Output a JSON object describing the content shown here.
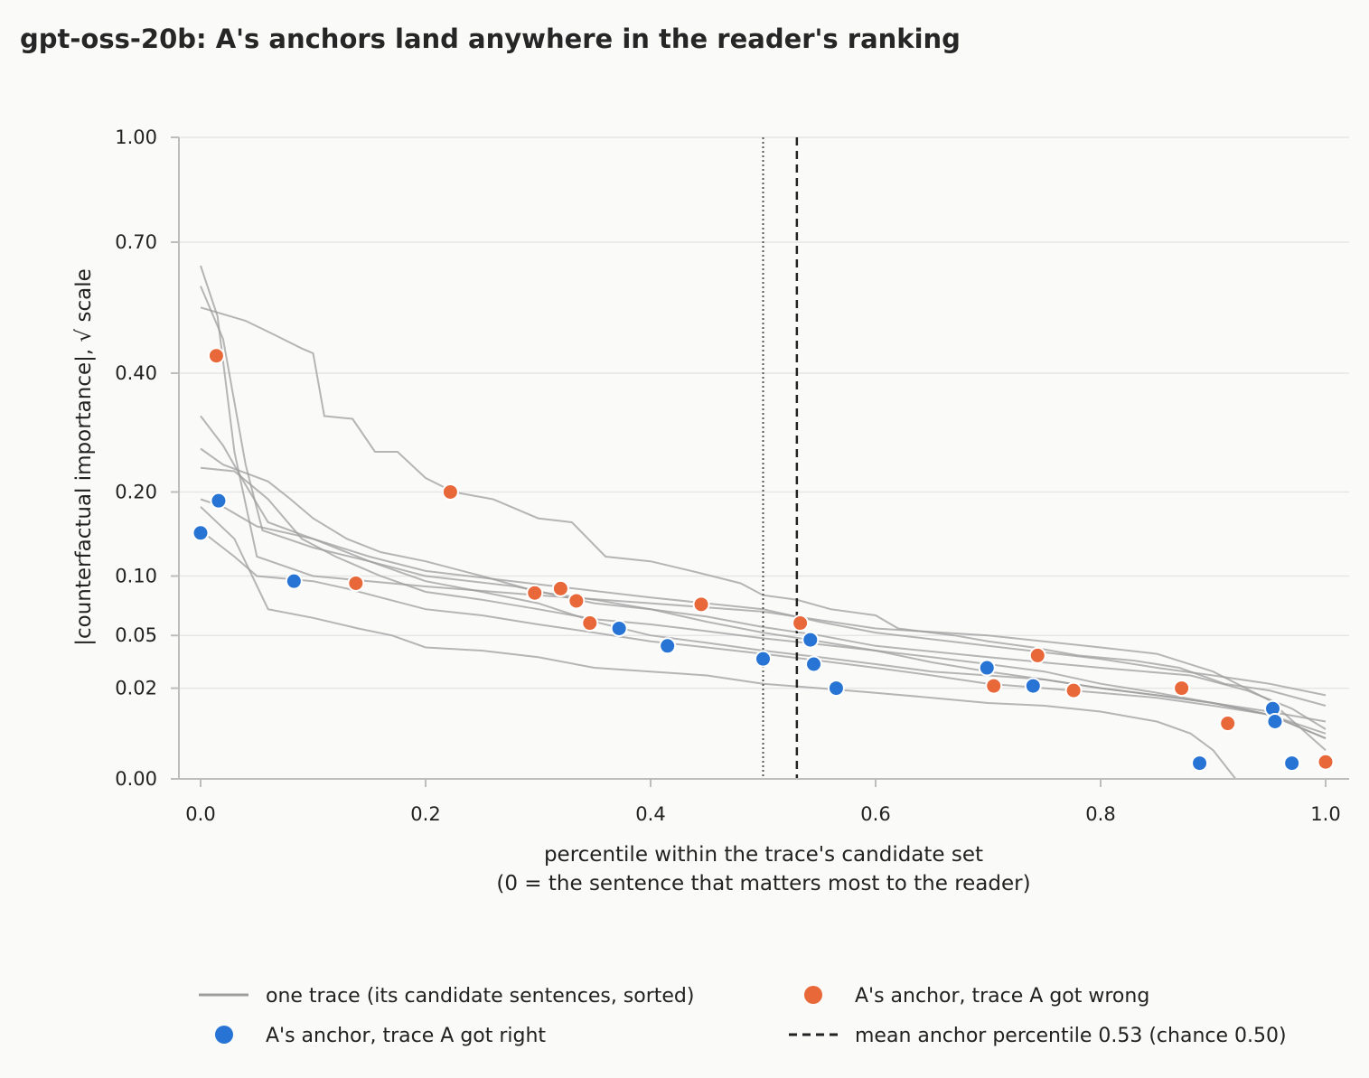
{
  "chart_data": {
    "type": "line",
    "title": "gpt-oss-20b: A's anchors land anywhere in the reader's ranking",
    "xlabel": "percentile within the trace's candidate set",
    "xlabel2": "(0 = the sentence that matters most to the reader)",
    "ylabel": "|counterfactual importance|, √ scale",
    "y_scale": "sqrt",
    "xlim": [
      0.0,
      1.0
    ],
    "ylim": [
      0.0,
      1.0
    ],
    "x_ticks": [
      "0.0",
      "0.2",
      "0.4",
      "0.6",
      "0.8",
      "1.0"
    ],
    "x_tick_values": [
      0.0,
      0.2,
      0.4,
      0.6,
      0.8,
      1.0
    ],
    "y_ticks": [
      "0.00",
      "0.02",
      "0.05",
      "0.10",
      "0.20",
      "0.40",
      "0.70",
      "1.00"
    ],
    "y_tick_values": [
      0.0,
      0.02,
      0.05,
      0.1,
      0.2,
      0.4,
      0.7,
      1.0
    ],
    "grid": "horizontal",
    "legend_position": "bottom",
    "colors": {
      "trace": "#9e9e9e",
      "wrong": "#e8683a",
      "right": "#2874d4",
      "mean": "#222222",
      "chance": "#555555"
    },
    "mean_anchor_percentile": 0.53,
    "chance_percentile": 0.5,
    "legend": {
      "trace": "one trace (its candidate sentences, sorted)",
      "wrong": "A's anchor, trace A got wrong",
      "right": "A's anchor, trace A got right",
      "mean": "mean anchor percentile 0.53 (chance 0.50)"
    },
    "traces": [
      [
        [
          0.0,
          0.54
        ],
        [
          0.04,
          0.51
        ],
        [
          0.065,
          0.48
        ],
        [
          0.09,
          0.45
        ],
        [
          0.1,
          0.44
        ],
        [
          0.11,
          0.32
        ],
        [
          0.135,
          0.315
        ],
        [
          0.155,
          0.26
        ],
        [
          0.175,
          0.26
        ],
        [
          0.2,
          0.22
        ],
        [
          0.225,
          0.2
        ],
        [
          0.26,
          0.19
        ],
        [
          0.3,
          0.165
        ],
        [
          0.33,
          0.16
        ],
        [
          0.36,
          0.12
        ],
        [
          0.4,
          0.115
        ],
        [
          0.44,
          0.104
        ],
        [
          0.48,
          0.093
        ],
        [
          0.5,
          0.082
        ],
        [
          0.53,
          0.078
        ],
        [
          0.56,
          0.07
        ],
        [
          0.6,
          0.065
        ],
        [
          0.62,
          0.055
        ],
        [
          0.67,
          0.05
        ],
        [
          0.7,
          0.046
        ],
        [
          0.74,
          0.042
        ],
        [
          0.78,
          0.037
        ],
        [
          0.83,
          0.034
        ],
        [
          0.87,
          0.03
        ],
        [
          0.91,
          0.022
        ],
        [
          0.95,
          0.019
        ],
        [
          1.0,
          0.013
        ]
      ],
      [
        [
          0.0,
          0.64
        ],
        [
          0.015,
          0.52
        ],
        [
          0.03,
          0.26
        ],
        [
          0.05,
          0.12
        ],
        [
          0.1,
          0.1
        ],
        [
          0.2,
          0.09
        ],
        [
          0.3,
          0.082
        ],
        [
          0.4,
          0.075
        ],
        [
          0.5,
          0.068
        ],
        [
          0.6,
          0.055
        ],
        [
          0.7,
          0.05
        ],
        [
          0.8,
          0.042
        ],
        [
          0.85,
          0.038
        ],
        [
          0.9,
          0.028
        ],
        [
          0.95,
          0.015
        ],
        [
          1.0,
          0.002
        ]
      ],
      [
        [
          0.0,
          0.59
        ],
        [
          0.02,
          0.47
        ],
        [
          0.04,
          0.24
        ],
        [
          0.055,
          0.15
        ],
        [
          0.1,
          0.13
        ],
        [
          0.15,
          0.115
        ],
        [
          0.2,
          0.1
        ],
        [
          0.28,
          0.09
        ],
        [
          0.35,
          0.075
        ],
        [
          0.4,
          0.07
        ],
        [
          0.45,
          0.064
        ],
        [
          0.5,
          0.056
        ],
        [
          0.55,
          0.05
        ],
        [
          0.6,
          0.043
        ],
        [
          0.7,
          0.036
        ],
        [
          0.8,
          0.03
        ],
        [
          0.88,
          0.026
        ],
        [
          0.93,
          0.019
        ],
        [
          0.97,
          0.012
        ],
        [
          1.0,
          0.006
        ]
      ],
      [
        [
          0.0,
          0.32
        ],
        [
          0.02,
          0.27
        ],
        [
          0.04,
          0.21
        ],
        [
          0.06,
          0.16
        ],
        [
          0.1,
          0.14
        ],
        [
          0.15,
          0.12
        ],
        [
          0.2,
          0.105
        ],
        [
          0.3,
          0.092
        ],
        [
          0.4,
          0.08
        ],
        [
          0.5,
          0.07
        ],
        [
          0.55,
          0.06
        ],
        [
          0.6,
          0.052
        ],
        [
          0.7,
          0.043
        ],
        [
          0.8,
          0.035
        ],
        [
          0.85,
          0.03
        ],
        [
          0.9,
          0.026
        ],
        [
          0.95,
          0.022
        ],
        [
          1.0,
          0.017
        ]
      ],
      [
        [
          0.0,
          0.265
        ],
        [
          0.02,
          0.24
        ],
        [
          0.06,
          0.215
        ],
        [
          0.08,
          0.19
        ],
        [
          0.1,
          0.165
        ],
        [
          0.13,
          0.14
        ],
        [
          0.16,
          0.125
        ],
        [
          0.2,
          0.115
        ],
        [
          0.25,
          0.1
        ],
        [
          0.3,
          0.085
        ],
        [
          0.35,
          0.078
        ],
        [
          0.4,
          0.07
        ],
        [
          0.45,
          0.06
        ],
        [
          0.5,
          0.052
        ],
        [
          0.55,
          0.046
        ],
        [
          0.6,
          0.04
        ],
        [
          0.65,
          0.033
        ],
        [
          0.7,
          0.028
        ],
        [
          0.75,
          0.024
        ],
        [
          0.8,
          0.02
        ],
        [
          0.85,
          0.017
        ],
        [
          0.9,
          0.014
        ],
        [
          0.95,
          0.011
        ],
        [
          1.0,
          0.008
        ]
      ],
      [
        [
          0.0,
          0.235
        ],
        [
          0.03,
          0.23
        ],
        [
          0.06,
          0.19
        ],
        [
          0.09,
          0.14
        ],
        [
          0.12,
          0.12
        ],
        [
          0.16,
          0.1
        ],
        [
          0.2,
          0.085
        ],
        [
          0.25,
          0.078
        ],
        [
          0.3,
          0.07
        ],
        [
          0.35,
          0.062
        ],
        [
          0.4,
          0.058
        ],
        [
          0.45,
          0.053
        ],
        [
          0.5,
          0.048
        ],
        [
          0.55,
          0.044
        ],
        [
          0.6,
          0.04
        ],
        [
          0.65,
          0.036
        ],
        [
          0.7,
          0.032
        ],
        [
          0.75,
          0.028
        ],
        [
          0.8,
          0.022
        ],
        [
          0.85,
          0.018
        ],
        [
          0.9,
          0.014
        ],
        [
          0.95,
          0.01
        ],
        [
          1.0,
          0.005
        ]
      ],
      [
        [
          0.0,
          0.19
        ],
        [
          0.02,
          0.18
        ],
        [
          0.05,
          0.155
        ],
        [
          0.1,
          0.14
        ],
        [
          0.15,
          0.115
        ],
        [
          0.2,
          0.095
        ],
        [
          0.25,
          0.085
        ],
        [
          0.3,
          0.075
        ],
        [
          0.35,
          0.06
        ],
        [
          0.4,
          0.05
        ],
        [
          0.45,
          0.045
        ],
        [
          0.5,
          0.04
        ],
        [
          0.55,
          0.036
        ],
        [
          0.6,
          0.032
        ],
        [
          0.65,
          0.028
        ],
        [
          0.7,
          0.026
        ],
        [
          0.75,
          0.024
        ],
        [
          0.8,
          0.02
        ],
        [
          0.85,
          0.017
        ],
        [
          0.9,
          0.014
        ],
        [
          0.95,
          0.01
        ],
        [
          1.0,
          0.004
        ]
      ],
      [
        [
          0.0,
          0.15
        ],
        [
          0.03,
          0.12
        ],
        [
          0.05,
          0.1
        ],
        [
          0.1,
          0.095
        ],
        [
          0.13,
          0.088
        ],
        [
          0.16,
          0.08
        ],
        [
          0.2,
          0.07
        ],
        [
          0.25,
          0.065
        ],
        [
          0.3,
          0.058
        ],
        [
          0.35,
          0.052
        ],
        [
          0.4,
          0.046
        ],
        [
          0.45,
          0.042
        ],
        [
          0.5,
          0.038
        ],
        [
          0.55,
          0.034
        ],
        [
          0.6,
          0.03
        ],
        [
          0.65,
          0.026
        ],
        [
          0.7,
          0.022
        ],
        [
          0.75,
          0.02
        ],
        [
          0.8,
          0.018
        ],
        [
          0.85,
          0.016
        ],
        [
          0.9,
          0.013
        ],
        [
          0.95,
          0.01
        ],
        [
          1.0,
          0.004
        ]
      ],
      [
        [
          0.0,
          0.18
        ],
        [
          0.03,
          0.14
        ],
        [
          0.06,
          0.07
        ],
        [
          0.1,
          0.063
        ],
        [
          0.14,
          0.055
        ],
        [
          0.17,
          0.05
        ],
        [
          0.2,
          0.042
        ],
        [
          0.25,
          0.04
        ],
        [
          0.3,
          0.036
        ],
        [
          0.35,
          0.03
        ],
        [
          0.4,
          0.028
        ],
        [
          0.45,
          0.026
        ],
        [
          0.5,
          0.022
        ],
        [
          0.55,
          0.02
        ],
        [
          0.6,
          0.018
        ],
        [
          0.65,
          0.016
        ],
        [
          0.7,
          0.014
        ],
        [
          0.75,
          0.013
        ],
        [
          0.8,
          0.011
        ],
        [
          0.85,
          0.008
        ],
        [
          0.88,
          0.005
        ],
        [
          0.9,
          0.002
        ],
        [
          0.92,
          0.0
        ],
        [
          1.0,
          0.0
        ]
      ]
    ],
    "anchors_wrong": [
      [
        0.014,
        0.435
      ],
      [
        0.222,
        0.2
      ],
      [
        0.138,
        0.093
      ],
      [
        0.297,
        0.084
      ],
      [
        0.32,
        0.088
      ],
      [
        0.334,
        0.077
      ],
      [
        0.346,
        0.059
      ],
      [
        0.445,
        0.074
      ],
      [
        0.533,
        0.059
      ],
      [
        0.705,
        0.021
      ],
      [
        0.744,
        0.037
      ],
      [
        0.776,
        0.019
      ],
      [
        0.872,
        0.02
      ],
      [
        0.913,
        0.0075
      ],
      [
        1.0,
        0.0007
      ]
    ],
    "anchors_right": [
      [
        0.0,
        0.147
      ],
      [
        0.016,
        0.188
      ],
      [
        0.083,
        0.095
      ],
      [
        0.372,
        0.055
      ],
      [
        0.415,
        0.043
      ],
      [
        0.5,
        0.035
      ],
      [
        0.542,
        0.047
      ],
      [
        0.545,
        0.032
      ],
      [
        0.565,
        0.02
      ],
      [
        0.699,
        0.03
      ],
      [
        0.74,
        0.021
      ],
      [
        0.888,
        0.0006
      ],
      [
        0.953,
        0.012
      ],
      [
        0.955,
        0.008
      ],
      [
        0.97,
        0.0006
      ]
    ]
  }
}
